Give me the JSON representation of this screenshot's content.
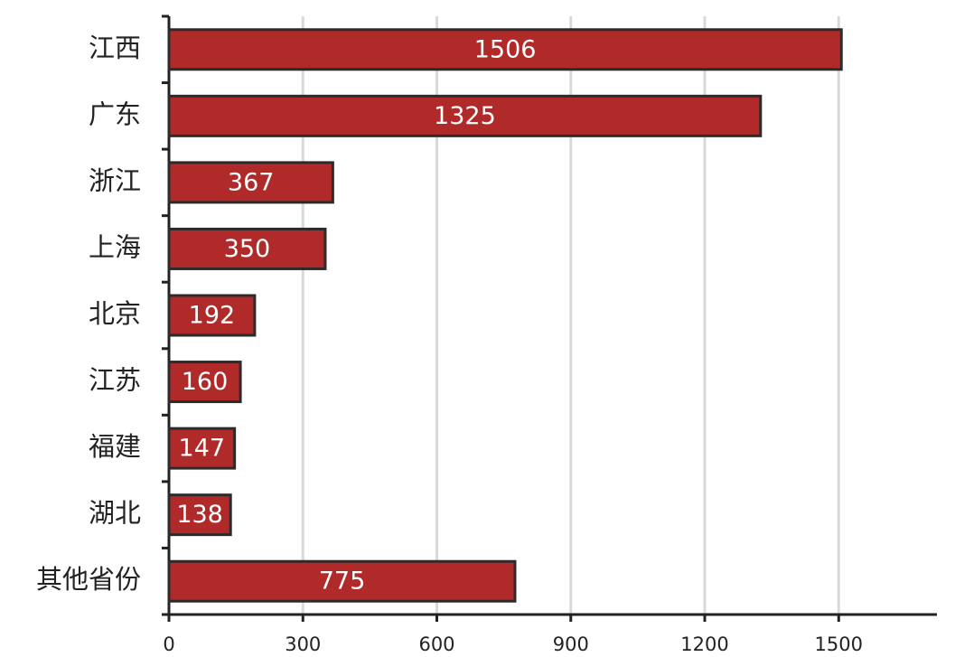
{
  "chart_data": {
    "type": "bar",
    "orientation": "horizontal",
    "categories": [
      "江西",
      "广东",
      "浙江",
      "上海",
      "北京",
      "江苏",
      "福建",
      "湖北",
      "其他省份"
    ],
    "values": [
      1506,
      1325,
      367,
      350,
      192,
      160,
      147,
      138,
      775
    ],
    "color": "#b12a2a",
    "xlim": [
      0,
      1720
    ],
    "xticks": [
      0,
      300,
      600,
      900,
      1200,
      1500
    ],
    "grid": true
  }
}
